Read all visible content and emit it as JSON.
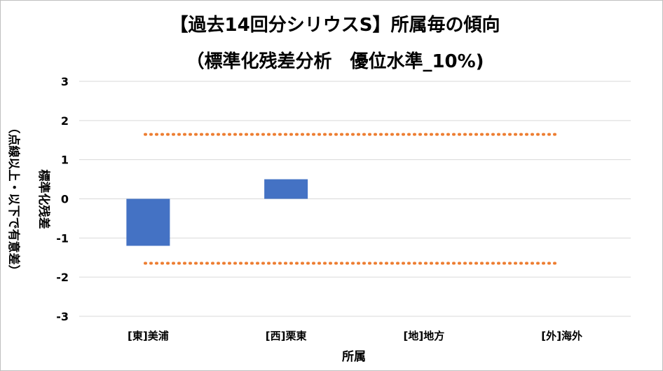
{
  "chart_data": {
    "type": "bar",
    "title": "【過去14回分シリウスS】所属毎の傾向",
    "subtitle": "（標準化残差分析　優位水準_10%)",
    "xlabel": "所属",
    "ylabel": "標準化残差",
    "ylabel_note": "（点線以上・以下で有意差）",
    "categories": [
      "[東]美浦",
      "[西]栗東",
      "[地]地方",
      "[外]海外"
    ],
    "series": [
      {
        "values": [
          -1.2,
          0.5,
          0,
          0
        ],
        "color": "#4472c4"
      }
    ],
    "ylim": [
      -3,
      3
    ],
    "yticks": [
      3,
      2,
      1,
      0,
      -1,
      -2,
      -3
    ],
    "thresholds": [
      1.645,
      -1.645
    ],
    "threshold_color": "#ed7d31",
    "grid": true,
    "legend": "none"
  }
}
